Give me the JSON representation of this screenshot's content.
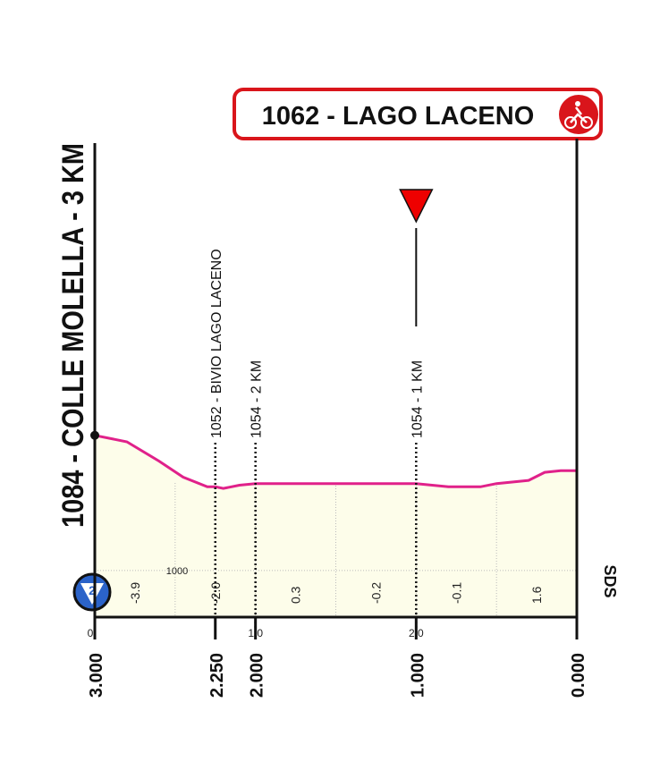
{
  "chart_data": {
    "type": "area",
    "title": "1062 - LAGO LACENO",
    "start_label": "1084 - COLLE MOLELLA - 3 KM",
    "category": "2",
    "logo": "SDS",
    "x": [
      3.0,
      2.8,
      2.6,
      2.45,
      2.3,
      2.25,
      2.2,
      2.1,
      2.0,
      1.5,
      1.0,
      0.8,
      0.6,
      0.5,
      0.3,
      0.2,
      0.1,
      0.0
    ],
    "values": [
      1084,
      1080,
      1068,
      1058,
      1052,
      1052,
      1051,
      1053,
      1054,
      1054,
      1054,
      1052,
      1052,
      1054,
      1056,
      1061,
      1062,
      1062
    ],
    "color": "#e0218a",
    "fill": "#fdfdea",
    "xlim": [
      3,
      0
    ],
    "ylim": [
      971,
      1100
    ],
    "yticks": [
      1000
    ],
    "xticks": [
      {
        "value": 3,
        "label": "3.000"
      },
      {
        "value": 2.25,
        "label": "2.250"
      },
      {
        "value": 2,
        "label": "2.000"
      },
      {
        "value": 1,
        "label": "1.000"
      },
      {
        "value": 0,
        "label": "0.000"
      }
    ],
    "km_done": [
      {
        "value": 3,
        "label": "0"
      },
      {
        "value": 2,
        "label": "1.0"
      },
      {
        "value": 1,
        "label": "2.0"
      }
    ],
    "xgrid": [
      2.5,
      2,
      1.5,
      1,
      0.5
    ],
    "gradients": {
      "x": [
        2.75,
        2.25,
        1.75,
        1.25,
        0.75,
        0.25
      ],
      "labels": [
        "-3.9",
        "-2.0",
        "0.3",
        "-0.2",
        "-0.1",
        "1.6"
      ]
    },
    "points": [
      {
        "x": 2.25,
        "label": "1052 - BIVIO LAGO LACENO",
        "flag": false
      },
      {
        "x": 2,
        "label": "1054 - 2 KM",
        "flag": false
      },
      {
        "x": 1,
        "label": "1054 - 1 KM",
        "flag": true
      }
    ],
    "grid": true
  }
}
